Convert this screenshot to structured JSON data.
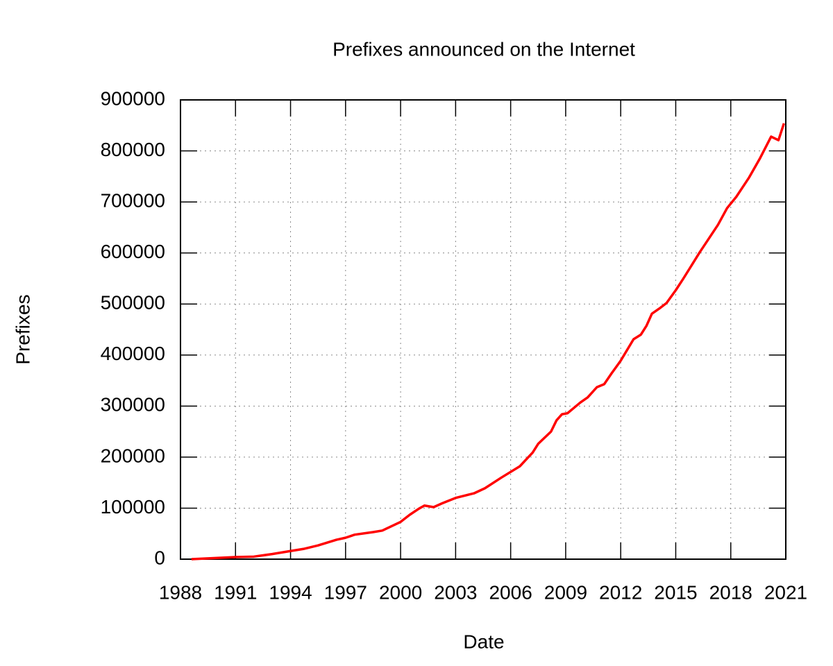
{
  "chart_data": {
    "type": "line",
    "title": "Prefixes announced on the Internet",
    "x_label": "Date",
    "y_label": "Prefixes",
    "x": [
      1988.6,
      1991.0,
      1992.0,
      1993.0,
      1994.0,
      1994.7,
      1995.5,
      1996.5,
      1997.0,
      1997.5,
      1998.5,
      1999.0,
      2000.0,
      2000.5,
      2001.0,
      2001.3,
      2001.8,
      2002.3,
      2003.0,
      2004.0,
      2004.6,
      2005.5,
      2006.5,
      2007.2,
      2007.5,
      2008.2,
      2008.5,
      2008.8,
      2009.1,
      2009.5,
      2009.8,
      2010.2,
      2010.7,
      2011.1,
      2011.5,
      2012.0,
      2012.7,
      2013.1,
      2013.4,
      2013.7,
      2014.1,
      2014.5,
      2015.0,
      2015.4,
      2015.8,
      2016.3,
      2016.8,
      2017.3,
      2017.8,
      2018.3,
      2019.0,
      2019.6,
      2020.2,
      2020.6,
      2020.9
    ],
    "series": [
      {
        "name": "Prefixes",
        "color": "#ff0000",
        "values": [
          0,
          4000,
          5000,
          10000,
          16000,
          20000,
          27000,
          38000,
          42000,
          48000,
          53000,
          56000,
          73000,
          87000,
          99000,
          105000,
          102000,
          110000,
          120000,
          129000,
          139000,
          160000,
          182000,
          209000,
          226000,
          250000,
          272000,
          284000,
          286000,
          298000,
          307000,
          317000,
          337000,
          343000,
          364000,
          389000,
          431000,
          440000,
          457000,
          481000,
          491000,
          502000,
          527000,
          549000,
          572000,
          601000,
          628000,
          655000,
          688000,
          710000,
          748000,
          786000,
          828000,
          821000,
          854000
        ]
      }
    ],
    "xlim": [
      1988,
      2021
    ],
    "xticks": [
      1988,
      1991,
      1994,
      1997,
      2000,
      2003,
      2006,
      2009,
      2012,
      2015,
      2018,
      2021
    ],
    "ylim": [
      0,
      900000
    ],
    "yticks": [
      0,
      100000,
      200000,
      300000,
      400000,
      500000,
      600000,
      700000,
      800000,
      900000
    ],
    "grid": true
  }
}
